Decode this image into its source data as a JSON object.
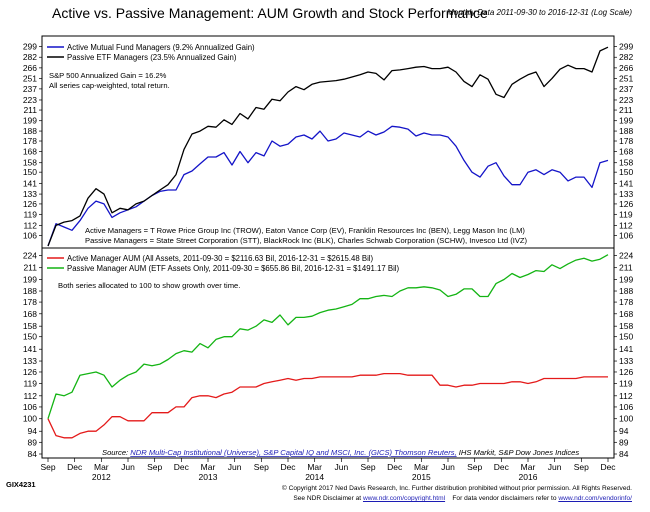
{
  "header": {
    "title": "Active vs. Passive Management: AUM Growth and Stock Performance",
    "subtitle": "Monthly Data 2011-09-30 to 2016-12-31 (Log Scale)"
  },
  "footer": {
    "code": "GIX4231",
    "copyright": "© Copyright 2017 Ned Davis Research, Inc. Further distribution prohibited without prior permission. All Rights Reserved.",
    "disclaimer_prefix": "See NDR Disclaimer at",
    "disclaimer_link": "www.ndr.com/copyright.html",
    "vendor_prefix": "For data vendor disclaimers refer to",
    "vendor_link": "www.ndr.com/vendorinfo/"
  },
  "colors": {
    "active": "#1414c8",
    "passive": "#000000",
    "active_aum": "#e41a1a",
    "passive_aum": "#14b414"
  },
  "x_axis": {
    "months": [
      "Sep",
      "Dec",
      "Mar",
      "Jun",
      "Sep",
      "Dec",
      "Mar",
      "Jun",
      "Sep",
      "Dec",
      "Mar",
      "Jun",
      "Sep",
      "Dec",
      "Mar",
      "Jun",
      "Sep",
      "Dec",
      "Mar",
      "Jun",
      "Sep",
      "Dec"
    ],
    "years": [
      {
        "label": "2012",
        "month_index": 6
      },
      {
        "label": "2013",
        "month_index": 18
      },
      {
        "label": "2014",
        "month_index": 30
      },
      {
        "label": "2015",
        "month_index": 42
      },
      {
        "label": "2016",
        "month_index": 54
      }
    ]
  },
  "top_panel": {
    "legend": [
      {
        "label": "Active Mutual Fund Managers (9.2% Annualized Gain)",
        "color": "#1414c8"
      },
      {
        "label": "Passive ETF Managers (23.5% Annualized Gain)",
        "color": "#000000"
      }
    ],
    "note1": "S&P 500 Annualized Gain = 16.2%",
    "note2": "All series cap-weighted, total return.",
    "active_managers": "Active Managers = T Rowe Price Group Inc (TROW), Eaton Vance Corp (EV), Franklin Resources Inc (BEN), Legg Mason Inc (LM)",
    "passive_managers": "Passive Managers = State Street Corporation (STT), BlackRock Inc (BLK), Charles Schwab Corporation (SCHW), Invesco Ltd (IVZ)",
    "ticks": [
      "299",
      "282",
      "266",
      "251",
      "237",
      "223",
      "211",
      "199",
      "188",
      "178",
      "168",
      "158",
      "150",
      "141",
      "133",
      "126",
      "119",
      "112",
      "106"
    ]
  },
  "bottom_panel": {
    "legend": [
      {
        "label": "Active Manager AUM (All Assets, 2011-09-30 = $2116.63 Bil, 2016-12-31 = $2615.48 Bil)",
        "color": "#e41a1a"
      },
      {
        "label": "Passive Manager AUM (ETF Assets Only, 2011-09-30 = $655.86 Bil, 2016-12-31 = $1491.17 Bil)",
        "color": "#14b414"
      }
    ],
    "note": "Both series allocated to 100 to show growth over time.",
    "ticks": [
      "224",
      "211",
      "199",
      "188",
      "178",
      "168",
      "158",
      "150",
      "141",
      "133",
      "126",
      "119",
      "112",
      "106",
      "100",
      "94",
      "89",
      "84"
    ],
    "source_label": "Source:",
    "source_link": "NDR Multi-Cap Institutional (Universe), S&P Capital IQ and MSCI, Inc. (GICS) Thomson Reuters,",
    "source_rest": "IHS Markit, S&P Dow Jones Indices"
  },
  "chart_data": [
    {
      "type": "line",
      "title": "Active vs. Passive Management: AUM Growth and Stock Performance",
      "subtitle": "Monthly Data 2011-09-30 to 2016-12-31 (Log Scale)",
      "x_start": "2011-09",
      "x_end": "2016-12",
      "frequency": "monthly",
      "log_scale": true,
      "ylim": [
        100,
        310
      ],
      "legend": "top-left",
      "series": [
        {
          "name": "Active Mutual Fund Managers (9.2% Annualized Gain)",
          "values": [
            100,
            113,
            111,
            109,
            115,
            123,
            128,
            126,
            117,
            120,
            122,
            124,
            128,
            132,
            135,
            136,
            136,
            148,
            151,
            157,
            163,
            163,
            167,
            156,
            168,
            158,
            167,
            164,
            178,
            173,
            175,
            182,
            184,
            180,
            188,
            178,
            180,
            186,
            184,
            182,
            188,
            184,
            187,
            193,
            192,
            190,
            183,
            186,
            184,
            184,
            182,
            173,
            160,
            150,
            146,
            155,
            158,
            147,
            140,
            140,
            150,
            152,
            148,
            152,
            150,
            143,
            146,
            146,
            138,
            158,
            160
          ]
        },
        {
          "name": "Passive ETF Managers (23.5% Annualized Gain)",
          "values": [
            100,
            112,
            114,
            115,
            118,
            130,
            137,
            133,
            120,
            123,
            122,
            126,
            128,
            132,
            136,
            140,
            148,
            170,
            185,
            188,
            193,
            192,
            200,
            195,
            207,
            201,
            214,
            212,
            224,
            222,
            233,
            240,
            236,
            243,
            246,
            247,
            248,
            250,
            253,
            256,
            260,
            258,
            249,
            262,
            263,
            265,
            267,
            268,
            265,
            265,
            267,
            260,
            247,
            240,
            256,
            250,
            230,
            226,
            243,
            250,
            256,
            260,
            240,
            251,
            264,
            270,
            265,
            265,
            260,
            292,
            298
          ]
        }
      ]
    },
    {
      "type": "line",
      "x_start": "2011-09",
      "x_end": "2016-12",
      "frequency": "monthly",
      "log_scale": true,
      "ylim": [
        84,
        228
      ],
      "legend": "top-left",
      "series": [
        {
          "name": "Active Manager AUM (All Assets, 2011-09-30 = $2116.63 Bil, 2016-12-31 = $2615.48 Bil)",
          "values": [
            100,
            92,
            91,
            91,
            93,
            94,
            94,
            97,
            101,
            101,
            99,
            99,
            99,
            103,
            103,
            103,
            106,
            106,
            111,
            112,
            112,
            111,
            113,
            114,
            117,
            117,
            117,
            119,
            120,
            121,
            122,
            121,
            122,
            122,
            123,
            123,
            123,
            123,
            123,
            124,
            124,
            124,
            125,
            125,
            125,
            124,
            124,
            124,
            124,
            118,
            118,
            117,
            118,
            118,
            119,
            119,
            119,
            119,
            120,
            120,
            119,
            120,
            122,
            122,
            122,
            122,
            122,
            123,
            123,
            123,
            123
          ]
        },
        {
          "name": "Passive Manager AUM (ETF Assets Only, 2011-09-30 = $655.86 Bil, 2016-12-31 = $1491.17 Bil)",
          "values": [
            100,
            113,
            112,
            114,
            124,
            125,
            126,
            124,
            117,
            121,
            124,
            126,
            131,
            130,
            131,
            134,
            138,
            140,
            139,
            145,
            142,
            148,
            150,
            150,
            156,
            155,
            158,
            163,
            161,
            167,
            159,
            165,
            165,
            166,
            169,
            171,
            172,
            174,
            176,
            181,
            181,
            183,
            184,
            183,
            188,
            191,
            191,
            192,
            191,
            189,
            183,
            185,
            190,
            190,
            183,
            183,
            195,
            199,
            205,
            201,
            204,
            208,
            207,
            214,
            210,
            215,
            219,
            221,
            218,
            220,
            225
          ]
        }
      ]
    }
  ]
}
